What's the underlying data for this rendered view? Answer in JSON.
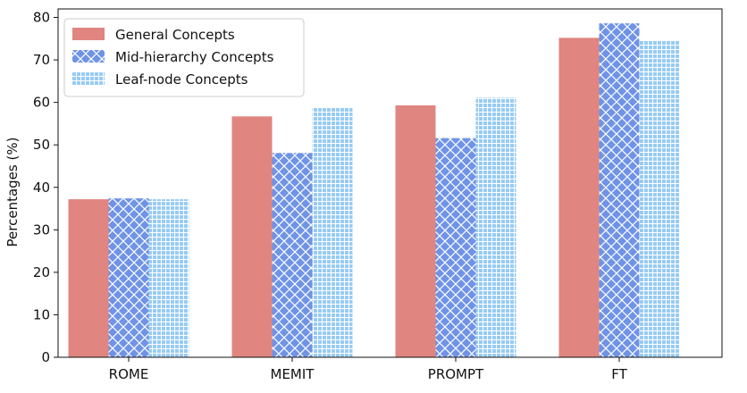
{
  "chart_data": {
    "type": "bar",
    "title": "",
    "xlabel": "",
    "ylabel": "Percentages (%)",
    "categories": [
      "ROME",
      "MEMIT",
      "PROMPT",
      "FT"
    ],
    "series": [
      {
        "name": "General Concepts",
        "values": [
          37.2,
          56.7,
          59.3,
          75.2
        ],
        "color": "#e0857f",
        "pattern": "solid"
      },
      {
        "name": "Mid-hierarchy Concepts",
        "values": [
          37.4,
          48.1,
          51.6,
          78.6
        ],
        "color": "#6f93e6",
        "pattern": "crosshatch"
      },
      {
        "name": "Leaf-node Concepts",
        "values": [
          37.2,
          58.8,
          61.1,
          74.5
        ],
        "color": "#97cbf4",
        "pattern": "grid"
      }
    ],
    "ylim": [
      0,
      82
    ],
    "yticks": [
      0,
      10,
      20,
      30,
      40,
      50,
      60,
      70,
      80
    ],
    "grid": false,
    "legend_position": "top-left"
  }
}
